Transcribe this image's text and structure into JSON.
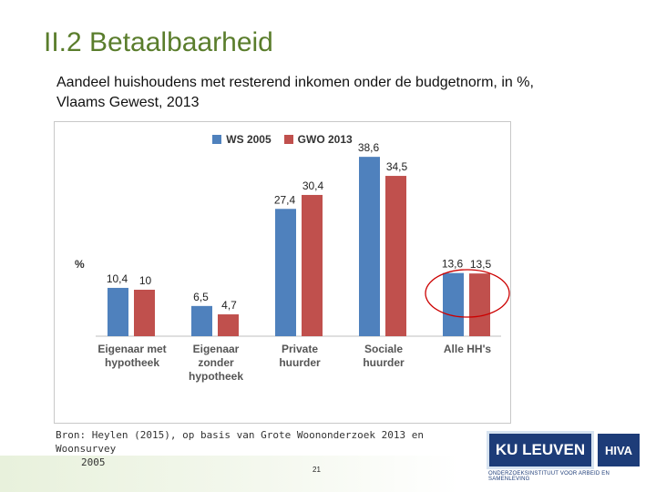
{
  "slide": {
    "title": "II.2 Betaalbaarheid",
    "subtitle": "Aandeel huishoudens met resterend inkomen onder de budgetnorm, in %, Vlaams Gewest, 2013",
    "source_line1": "Bron: Heylen (2015), op basis van Grote Woononderzoek 2013 en Woonsurvey",
    "source_line2": "2005",
    "page_number": "21",
    "logo_ku": "KU LEUVEN",
    "logo_hiva": "HIVA",
    "logo_subtext": "ONDERZOEKSINSTITUUT VOOR ARBEID EN SAMENLEVING"
  },
  "chart_data": {
    "type": "bar",
    "ylabel": "%",
    "ylim": [
      0,
      40
    ],
    "grid": false,
    "legend_position": "top",
    "categories": [
      [
        "Eigenaar met",
        "hypotheek"
      ],
      [
        "Eigenaar",
        "zonder",
        "hypotheek"
      ],
      [
        "Private",
        "huurder"
      ],
      [
        "Sociale",
        "huurder"
      ],
      [
        "Alle HH's"
      ]
    ],
    "series": [
      {
        "name": "WS 2005",
        "color": "#4f81bd",
        "values": [
          10.4,
          6.5,
          27.4,
          38.6,
          13.6
        ],
        "labels": [
          "10,4",
          "6,5",
          "27,4",
          "38,6",
          "13,6"
        ]
      },
      {
        "name": "GWO 2013",
        "color": "#c0504d",
        "values": [
          10,
          4.7,
          30.4,
          34.5,
          13.5
        ],
        "labels": [
          "10",
          "4,7",
          "30,4",
          "34,5",
          "13,5"
        ]
      }
    ],
    "annotation": {
      "type": "ellipse",
      "category_index": 4,
      "color": "#cc0000"
    }
  }
}
